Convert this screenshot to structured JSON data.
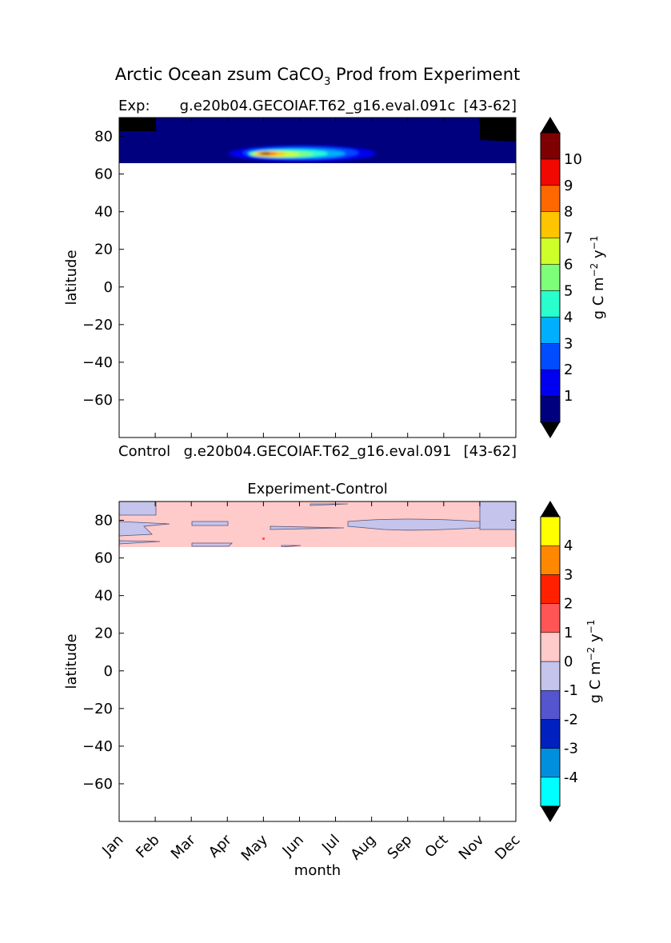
{
  "figure": {
    "title": "Arctic Ocean zsum CaCO",
    "title_sub": "3",
    "title_suffix": " Prod from Experiment"
  },
  "chart_data": [
    {
      "type": "heatmap",
      "title_left": "Exp:",
      "title_center": "g.e20b04.GECOIAF.T62_g16.eval.091c",
      "title_right": "[43-62]",
      "ylabel": "latitude",
      "xlabel": "",
      "x_range": [
        0,
        11
      ],
      "ylim": [
        -80,
        90
      ],
      "yticks": [
        80,
        60,
        40,
        20,
        0,
        -20,
        -40,
        -60
      ],
      "data_lat_range": [
        66,
        90
      ],
      "colorbar": {
        "label": "g C m",
        "label_sup1": "−2",
        "label_mid": " y",
        "label_sup2": "−1",
        "levels": [
          0,
          1,
          2,
          3,
          4,
          5,
          6,
          7,
          8,
          9,
          10,
          11
        ],
        "tick_labels": [
          "1",
          "2",
          "3",
          "4",
          "5",
          "6",
          "7",
          "8",
          "9",
          "10"
        ],
        "colors": [
          "#00007f",
          "#0000f1",
          "#004cff",
          "#00b0ff",
          "#29ffce",
          "#7dff7a",
          "#ceff29",
          "#ffc400",
          "#ff6700",
          "#f10800",
          "#7f0000"
        ],
        "extend": "both"
      },
      "masked_color": "#000000",
      "peak": {
        "month": 4.1,
        "lat": 70.5,
        "value": 9.5
      }
    },
    {
      "type": "heatmap",
      "title_left": "Control",
      "title_center": "g.e20b04.GECOIAF.T62_g16.eval.091",
      "title_right": "[43-62]",
      "subtitle": "Experiment-Control",
      "ylabel": "latitude",
      "xlabel": "month",
      "x_tick_labels": [
        "Jan",
        "Feb",
        "Mar",
        "Apr",
        "May",
        "Jun",
        "Jul",
        "Aug",
        "Sep",
        "Oct",
        "Nov",
        "Dec"
      ],
      "x_range": [
        0,
        11
      ],
      "ylim": [
        -80,
        90
      ],
      "yticks": [
        80,
        60,
        40,
        20,
        0,
        -20,
        -40,
        -60
      ],
      "data_lat_range": [
        66,
        90
      ],
      "colorbar": {
        "label": "g C m",
        "label_sup1": "−2",
        "label_mid": " y",
        "label_sup2": "−1",
        "levels": [
          -5,
          -4,
          -3,
          -2,
          -1,
          0,
          1,
          2,
          3,
          4,
          5
        ],
        "tick_labels": [
          "-4",
          "-3",
          "-2",
          "-1",
          "0",
          "1",
          "2",
          "3",
          "4"
        ],
        "colors": [
          "#00ffff",
          "#008fdf",
          "#0020c0",
          "#5555cf",
          "#c4c4ec",
          "#ffcaca",
          "#ff5555",
          "#ff2000",
          "#ff8800",
          "#ffff00"
        ],
        "extend": "both"
      },
      "dominant_value_band": [
        0,
        1
      ],
      "negative_band": [
        -1,
        0
      ]
    }
  ]
}
